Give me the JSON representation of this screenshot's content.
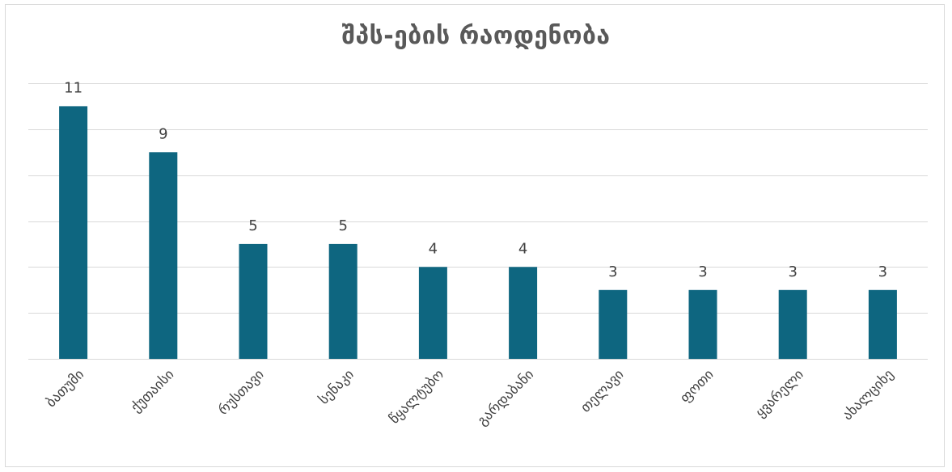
{
  "chart_data": {
    "type": "bar",
    "title": "შპს-ების რაოდენობა",
    "categories": [
      "ბათუმი",
      "ქუთაისი",
      "რუსთავი",
      "სენაკი",
      "წყალტუბო",
      "გარდაბანი",
      "თელავი",
      "ფოთი",
      "ყვარელი",
      "ახალციხე"
    ],
    "values": [
      11,
      9,
      5,
      5,
      4,
      4,
      3,
      3,
      3,
      3
    ],
    "xlabel": "",
    "ylabel": "",
    "ylim": [
      0,
      12
    ],
    "grid": true,
    "bar_color": "#0e6680",
    "gridline_color": "#d9d9d9",
    "label_color": "#404040"
  }
}
